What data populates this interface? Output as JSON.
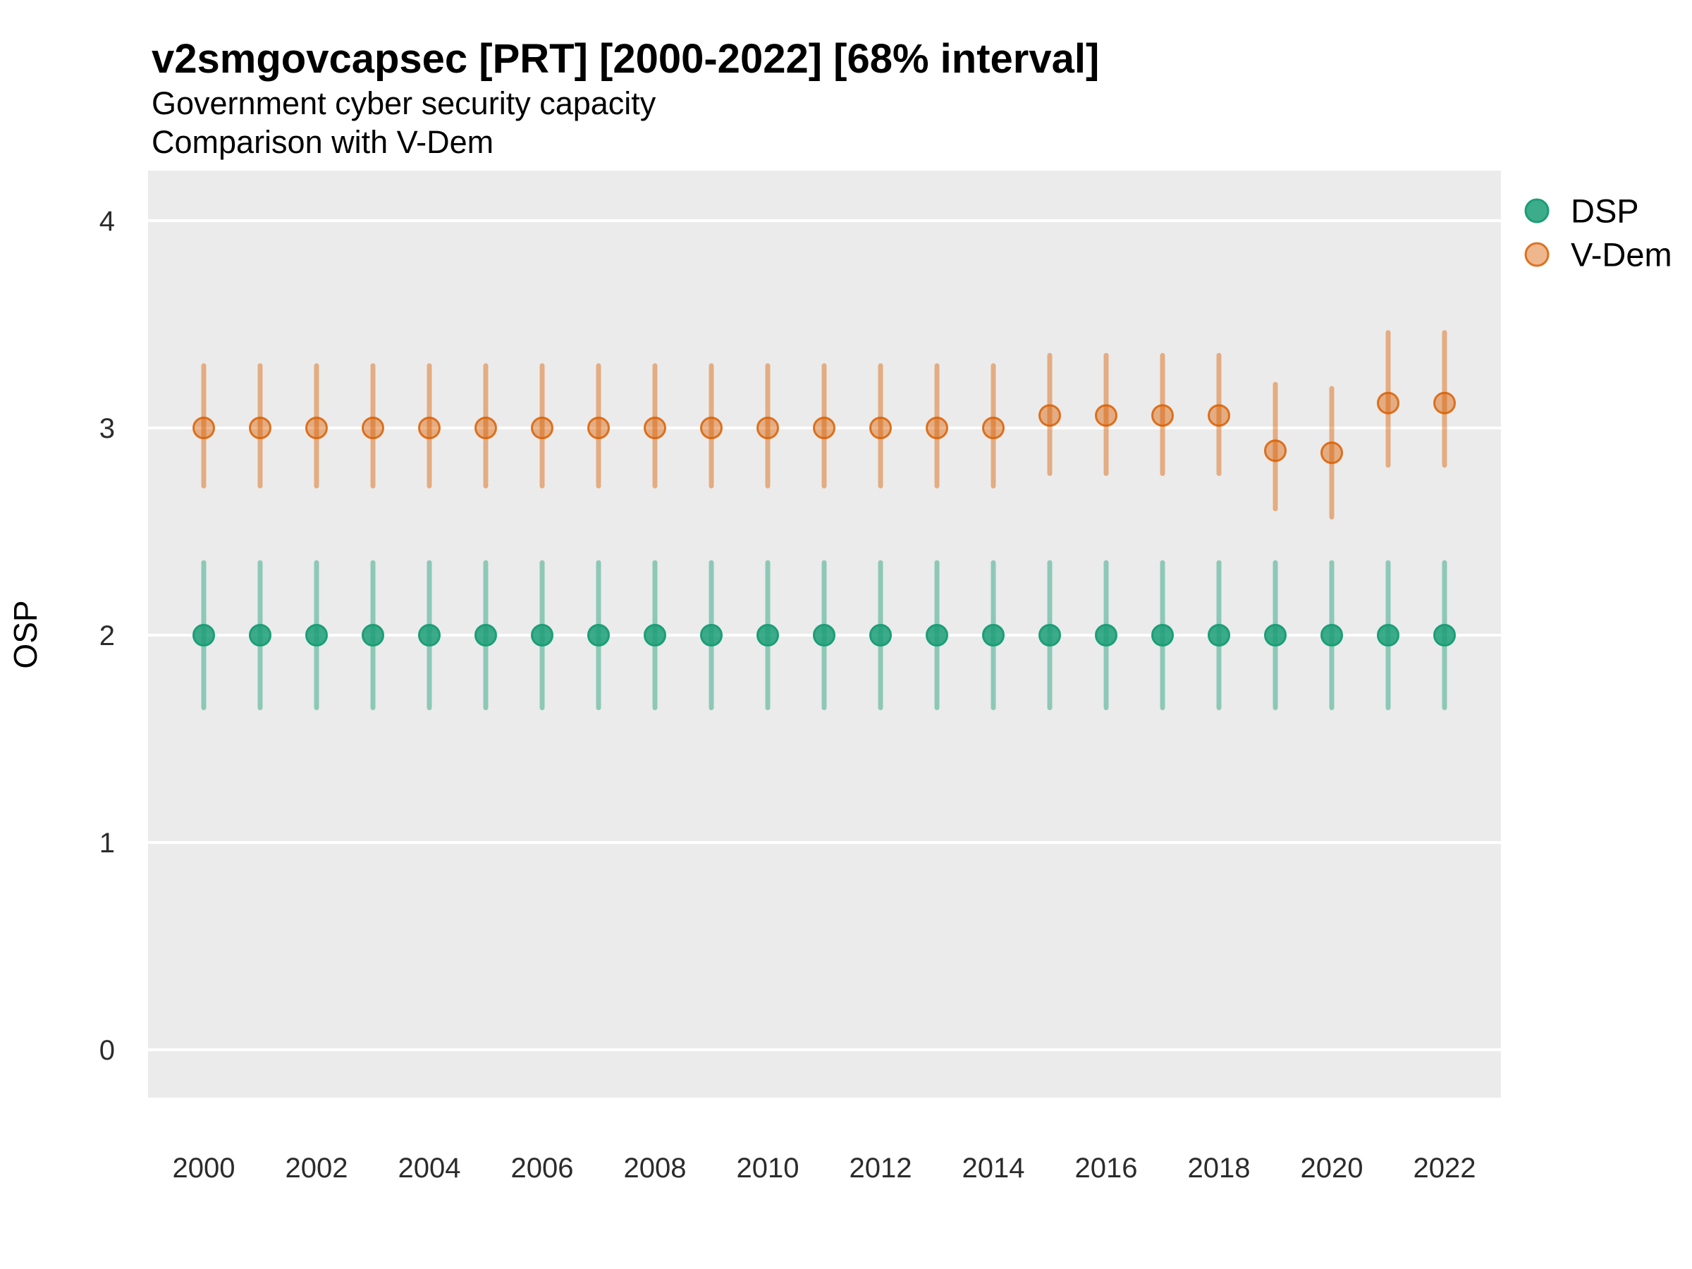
{
  "header": {
    "title": "v2smgovcapsec [PRT] [2000-2022] [68% interval]",
    "subtitle1": "Government cyber security capacity",
    "subtitle2": "Comparison with V-Dem"
  },
  "axes": {
    "y_label": "OSP",
    "y_ticks": [
      0,
      1,
      2,
      3,
      4
    ],
    "x_ticks": [
      2000,
      2002,
      2004,
      2006,
      2008,
      2010,
      2012,
      2014,
      2016,
      2018,
      2020,
      2022
    ]
  },
  "panel": {
    "background_color": "#EBEBEB",
    "gridline_color": "#FFFFFF"
  },
  "legend": {
    "position": "right",
    "items": [
      "DSP",
      "V-Dem"
    ]
  },
  "chart_data": {
    "type": "pointrange",
    "title": "v2smgovcapsec [PRT] [2000-2022] [68% interval]",
    "subtitle": [
      "Government cyber security capacity",
      "Comparison with V-Dem"
    ],
    "interval": "68%",
    "xlabel": "",
    "ylabel": "OSP",
    "ylim": [
      -0.24,
      4.24
    ],
    "grid": "major-horizontal",
    "legend_position": "right",
    "x": [
      2000,
      2001,
      2002,
      2003,
      2004,
      2005,
      2006,
      2007,
      2008,
      2009,
      2010,
      2011,
      2012,
      2013,
      2014,
      2015,
      2016,
      2017,
      2018,
      2019,
      2020,
      2021,
      2022
    ],
    "series": [
      {
        "name": "DSP",
        "color": "#1B9E77",
        "style": {
          "bar": "rgba(27,158,119,0.45)",
          "fill": "rgba(27,158,119,0.85)",
          "ring": "#1B9E77"
        },
        "est": [
          2.0,
          2.0,
          2.0,
          2.0,
          2.0,
          2.0,
          2.0,
          2.0,
          2.0,
          2.0,
          2.0,
          2.0,
          2.0,
          2.0,
          2.0,
          2.0,
          2.0,
          2.0,
          2.0,
          2.0,
          2.0,
          2.0,
          2.0
        ],
        "lo": [
          1.65,
          1.65,
          1.65,
          1.65,
          1.65,
          1.65,
          1.65,
          1.65,
          1.65,
          1.65,
          1.65,
          1.65,
          1.65,
          1.65,
          1.65,
          1.65,
          1.65,
          1.65,
          1.65,
          1.65,
          1.65,
          1.65,
          1.65
        ],
        "hi": [
          2.35,
          2.35,
          2.35,
          2.35,
          2.35,
          2.35,
          2.35,
          2.35,
          2.35,
          2.35,
          2.35,
          2.35,
          2.35,
          2.35,
          2.35,
          2.35,
          2.35,
          2.35,
          2.35,
          2.35,
          2.35,
          2.35,
          2.35
        ]
      },
      {
        "name": "V-Dem",
        "color": "#D95F02",
        "style": {
          "bar": "rgba(217,95,2,0.45)",
          "fill": "rgba(217,95,2,0.45)",
          "ring": "rgba(217,95,2,0.85)"
        },
        "est": [
          3.0,
          3.0,
          3.0,
          3.0,
          3.0,
          3.0,
          3.0,
          3.0,
          3.0,
          3.0,
          3.0,
          3.0,
          3.0,
          3.0,
          3.0,
          3.06,
          3.06,
          3.06,
          3.06,
          2.89,
          2.88,
          3.12,
          3.12
        ],
        "lo": [
          2.72,
          2.72,
          2.72,
          2.72,
          2.72,
          2.72,
          2.72,
          2.72,
          2.72,
          2.72,
          2.72,
          2.72,
          2.72,
          2.72,
          2.72,
          2.78,
          2.78,
          2.78,
          2.78,
          2.61,
          2.57,
          2.82,
          2.82
        ],
        "hi": [
          3.3,
          3.3,
          3.3,
          3.3,
          3.3,
          3.3,
          3.3,
          3.3,
          3.3,
          3.3,
          3.3,
          3.3,
          3.3,
          3.3,
          3.3,
          3.35,
          3.35,
          3.35,
          3.35,
          3.21,
          3.19,
          3.46,
          3.46
        ]
      }
    ]
  }
}
